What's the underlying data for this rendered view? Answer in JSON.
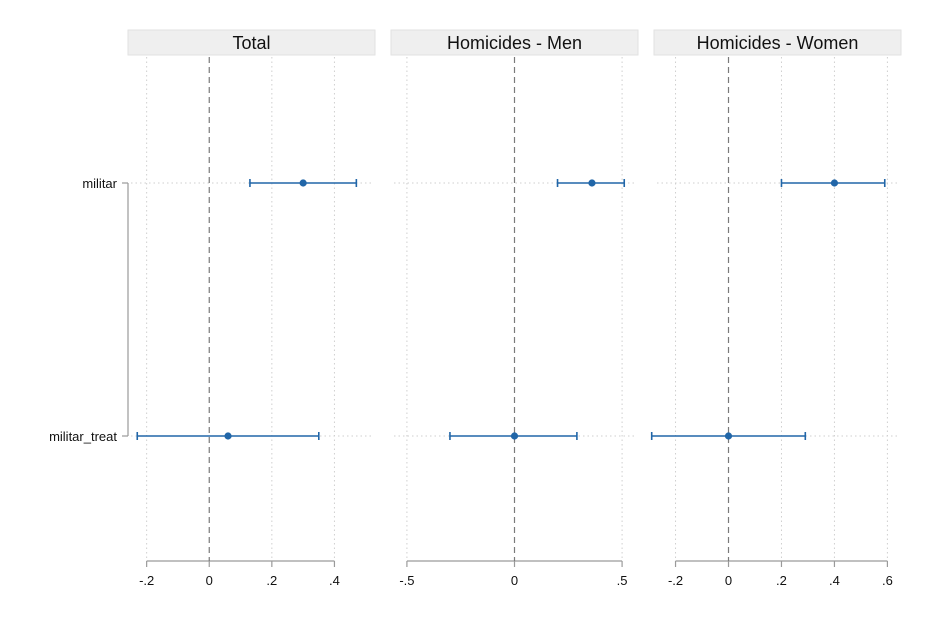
{
  "chart_data": {
    "type": "scatter",
    "subtype": "coefficient-plot-with-confidence-intervals",
    "y_categories": [
      "militar",
      "militar_treat"
    ],
    "reference_line": 0,
    "grid": "dotted vertical at ticks, dotted horizontal at categories",
    "marker_color": "#2166a8",
    "panels": [
      {
        "title": "Total",
        "xlim": [
          -0.25,
          0.52
        ],
        "ticks": [
          -0.2,
          0,
          0.2,
          0.4
        ],
        "tick_labels": [
          "-.2",
          "0",
          ".2",
          ".4"
        ],
        "points": [
          {
            "label": "militar",
            "estimate": 0.3,
            "ci_low": 0.13,
            "ci_high": 0.47
          },
          {
            "label": "militar_treat",
            "estimate": 0.06,
            "ci_low": -0.23,
            "ci_high": 0.35
          }
        ]
      },
      {
        "title": "Homicides - Men",
        "xlim": [
          -0.56,
          0.56
        ],
        "ticks": [
          -0.5,
          0,
          0.5
        ],
        "tick_labels": [
          "-.5",
          "0",
          ".5"
        ],
        "points": [
          {
            "label": "militar",
            "estimate": 0.36,
            "ci_low": 0.2,
            "ci_high": 0.51
          },
          {
            "label": "militar_treat",
            "estimate": 0.0,
            "ci_low": -0.3,
            "ci_high": 0.29
          }
        ]
      },
      {
        "title": "Homicides - Women",
        "xlim": [
          -0.27,
          0.64
        ],
        "ticks": [
          -0.2,
          0,
          0.2,
          0.4,
          0.6
        ],
        "tick_labels": [
          "-.2",
          "0",
          ".2",
          ".4",
          ".6"
        ],
        "points": [
          {
            "label": "militar",
            "estimate": 0.4,
            "ci_low": 0.2,
            "ci_high": 0.59
          },
          {
            "label": "militar_treat",
            "estimate": 0.0,
            "ci_low": -0.29,
            "ci_high": 0.29
          }
        ]
      }
    ]
  }
}
